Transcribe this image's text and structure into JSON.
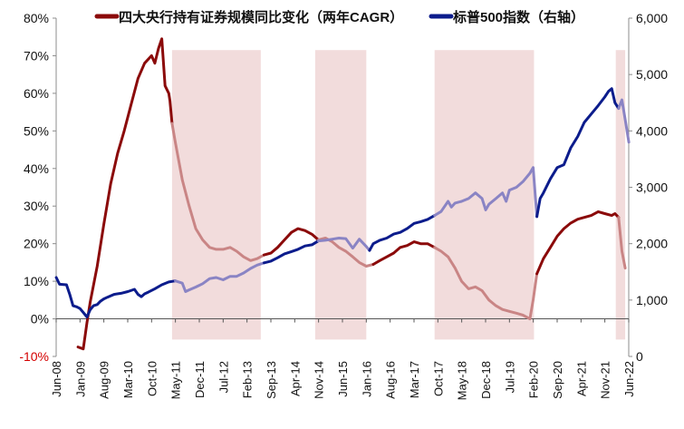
{
  "chart_data": {
    "type": "line",
    "title": "",
    "xlabel": "",
    "ylabel_left": "",
    "ylabel_right": "",
    "ylim_left": [
      -10,
      80
    ],
    "ylim_right": [
      0,
      6000
    ],
    "grid": false,
    "legend_position": "top",
    "left_ticks": [
      "-10%",
      "0%",
      "10%",
      "20%",
      "30%",
      "40%",
      "50%",
      "60%",
      "70%",
      "80%"
    ],
    "left_tick_values": [
      -10,
      0,
      10,
      20,
      30,
      40,
      50,
      60,
      70,
      80
    ],
    "right_ticks": [
      "0",
      "1,000",
      "2,000",
      "3,000",
      "4,000",
      "5,000",
      "6,000"
    ],
    "right_tick_values": [
      0,
      1000,
      2000,
      3000,
      4000,
      5000,
      6000
    ],
    "x_ticks": [
      "Jun-08",
      "Jan-09",
      "Aug-09",
      "Mar-10",
      "Oct-10",
      "May-11",
      "Dec-11",
      "Jul-12",
      "Feb-13",
      "Sep-13",
      "Apr-14",
      "Nov-14",
      "Jun-15",
      "Jan-16",
      "Aug-16",
      "Mar-17",
      "Oct-17",
      "May-18",
      "Dec-18",
      "Jul-19",
      "Feb-20",
      "Sep-20",
      "Apr-21",
      "Nov-21",
      "Jun-22"
    ],
    "x_tick_values": [
      2008.417,
      2009.0,
      2009.583,
      2010.167,
      2010.75,
      2011.333,
      2011.917,
      2012.5,
      2013.083,
      2013.667,
      2014.25,
      2014.833,
      2015.417,
      2016.0,
      2016.583,
      2017.167,
      2017.75,
      2018.333,
      2018.917,
      2019.5,
      2020.083,
      2020.667,
      2021.25,
      2021.833,
      2022.417
    ],
    "xlim": [
      2008.417,
      2022.417
    ],
    "shaded_periods": [
      {
        "start": 2011.25,
        "end": 2013.42
      },
      {
        "start": 2014.75,
        "end": 2016.0
      },
      {
        "start": 2017.67,
        "end": 2020.1
      },
      {
        "start": 2022.1,
        "end": 2022.33
      }
    ],
    "series": [
      {
        "name": "四大央行持有证券规模同比变化（两年CAGR）",
        "axis": "left",
        "color": "#8b0a0a",
        "faded_color": "#c98585",
        "faded_in_shaded_periods": true,
        "x": [
          2008.95,
          2009.08,
          2009.17,
          2009.25,
          2009.42,
          2009.58,
          2009.75,
          2009.92,
          2010.08,
          2010.25,
          2010.42,
          2010.58,
          2010.75,
          2010.83,
          2010.92,
          2011.0,
          2011.08,
          2011.17,
          2011.2,
          2011.25,
          2011.33,
          2011.5,
          2011.67,
          2011.83,
          2012.0,
          2012.17,
          2012.33,
          2012.5,
          2012.67,
          2012.83,
          2013.0,
          2013.17,
          2013.33,
          2013.5,
          2013.67,
          2013.83,
          2014.0,
          2014.17,
          2014.33,
          2014.5,
          2014.67,
          2014.83,
          2015.0,
          2015.17,
          2015.33,
          2015.5,
          2015.67,
          2015.83,
          2016.0,
          2016.17,
          2016.33,
          2016.5,
          2016.67,
          2016.83,
          2017.0,
          2017.17,
          2017.33,
          2017.5,
          2017.67,
          2017.83,
          2018.0,
          2018.17,
          2018.33,
          2018.5,
          2018.67,
          2018.83,
          2019.0,
          2019.17,
          2019.33,
          2019.5,
          2019.67,
          2019.83,
          2020.0,
          2020.08,
          2020.17,
          2020.33,
          2020.5,
          2020.67,
          2020.83,
          2021.0,
          2021.17,
          2021.33,
          2021.5,
          2021.67,
          2021.83,
          2022.0,
          2022.08,
          2022.17,
          2022.25,
          2022.33
        ],
        "values": [
          -7.5,
          -8.0,
          -1.0,
          4.5,
          14.0,
          25.0,
          36.0,
          44.0,
          50.0,
          57.0,
          64.0,
          68.0,
          70.0,
          68.0,
          72.0,
          74.5,
          62.0,
          60.0,
          58.0,
          52.0,
          47.0,
          37.0,
          30.0,
          24.0,
          21.0,
          19.0,
          18.5,
          18.5,
          19.0,
          18.0,
          16.5,
          15.5,
          16.0,
          17.0,
          17.5,
          19.0,
          21.0,
          23.0,
          24.0,
          23.5,
          22.5,
          21.0,
          21.5,
          20.5,
          19.0,
          18.0,
          16.5,
          15.0,
          14.0,
          14.5,
          15.5,
          16.5,
          17.5,
          19.0,
          19.5,
          20.5,
          20.0,
          20.0,
          19.0,
          18.0,
          16.5,
          13.5,
          10.0,
          8.0,
          8.5,
          7.5,
          5.0,
          3.5,
          2.5,
          2.0,
          1.5,
          1.0,
          0.0,
          5.0,
          12.0,
          16.0,
          19.0,
          22.0,
          24.0,
          25.5,
          26.5,
          27.0,
          27.5,
          28.5,
          28.0,
          27.5,
          28.0,
          27.0,
          18.0,
          13.5
        ]
      },
      {
        "name": "标普500指数（右轴）",
        "axis": "right",
        "color": "#0c1c8c",
        "faded_color": "#8a84c4",
        "faded_in_shaded_periods": true,
        "x": [
          2008.42,
          2008.5,
          2008.67,
          2008.75,
          2008.83,
          2008.92,
          2009.0,
          2009.08,
          2009.17,
          2009.25,
          2009.33,
          2009.42,
          2009.5,
          2009.58,
          2009.67,
          2009.83,
          2010.0,
          2010.17,
          2010.33,
          2010.42,
          2010.5,
          2010.58,
          2010.67,
          2010.83,
          2011.0,
          2011.17,
          2011.33,
          2011.5,
          2011.58,
          2011.67,
          2011.83,
          2012.0,
          2012.17,
          2012.33,
          2012.5,
          2012.67,
          2012.83,
          2013.0,
          2013.17,
          2013.33,
          2013.5,
          2013.67,
          2013.83,
          2014.0,
          2014.17,
          2014.33,
          2014.5,
          2014.67,
          2014.83,
          2015.0,
          2015.17,
          2015.33,
          2015.5,
          2015.67,
          2015.75,
          2015.83,
          2016.0,
          2016.08,
          2016.17,
          2016.33,
          2016.5,
          2016.67,
          2016.83,
          2017.0,
          2017.17,
          2017.33,
          2017.5,
          2017.67,
          2017.83,
          2018.0,
          2018.08,
          2018.17,
          2018.33,
          2018.5,
          2018.67,
          2018.83,
          2018.92,
          2019.0,
          2019.17,
          2019.33,
          2019.42,
          2019.5,
          2019.67,
          2019.83,
          2020.0,
          2020.08,
          2020.17,
          2020.25,
          2020.33,
          2020.5,
          2020.67,
          2020.83,
          2021.0,
          2021.17,
          2021.33,
          2021.5,
          2021.67,
          2021.83,
          2021.92,
          2022.0,
          2022.08,
          2022.17,
          2022.25,
          2022.33,
          2022.42
        ],
        "values": [
          1400,
          1280,
          1270,
          1100,
          900,
          880,
          850,
          780,
          700,
          830,
          900,
          920,
          980,
          1020,
          1050,
          1100,
          1120,
          1150,
          1190,
          1100,
          1060,
          1110,
          1140,
          1200,
          1270,
          1320,
          1340,
          1300,
          1150,
          1180,
          1230,
          1290,
          1380,
          1400,
          1360,
          1420,
          1420,
          1480,
          1560,
          1620,
          1660,
          1690,
          1750,
          1820,
          1860,
          1900,
          1960,
          1980,
          2050,
          2060,
          2080,
          2100,
          2090,
          1920,
          2000,
          2080,
          1950,
          1880,
          2000,
          2060,
          2100,
          2170,
          2200,
          2270,
          2360,
          2390,
          2430,
          2500,
          2570,
          2750,
          2650,
          2720,
          2750,
          2800,
          2900,
          2800,
          2600,
          2700,
          2800,
          2900,
          2750,
          2950,
          3000,
          3100,
          3250,
          3350,
          2480,
          2800,
          2900,
          3150,
          3350,
          3400,
          3700,
          3900,
          4150,
          4300,
          4450,
          4600,
          4700,
          4750,
          4500,
          4400,
          4550,
          4200,
          3800
        ]
      }
    ]
  }
}
